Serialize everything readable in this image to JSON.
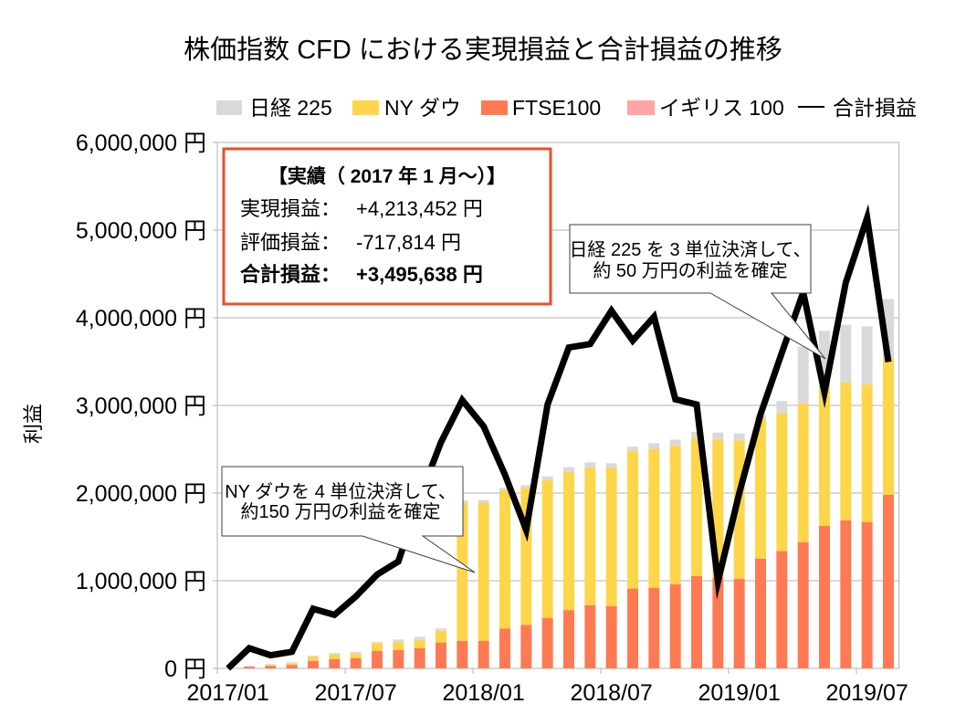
{
  "title": "株価指数 CFD における実現損益と合計損益の推移",
  "legend": [
    {
      "label": "日経 225",
      "color": "#D9D9D9"
    },
    {
      "label": "NY ダウ",
      "color": "#FFD54A"
    },
    {
      "label": "FTSE100",
      "color": "#FF7A52"
    },
    {
      "label": "イギリス 100",
      "color": "#FFA5A5"
    },
    {
      "label": "合計損益",
      "color": "#000000"
    }
  ],
  "summary_box": {
    "heading": "【実績（ 2017 年 1 月～）】",
    "rows": [
      {
        "label": "実現損益：",
        "value": "+4,213,452 円"
      },
      {
        "label": "評価損益：",
        "value": "-717,814 円"
      },
      {
        "label": "合計損益：",
        "value": "+3,495,638 円"
      }
    ],
    "accent_color": "#E8502A"
  },
  "annotations": [
    {
      "lines": [
        "NY ダウを 4 単位決済して、",
        "約150 万円の利益を確定"
      ]
    },
    {
      "lines": [
        "日経 225 を 3 単位決済して、",
        "約 50 万円の利益を確定"
      ]
    }
  ],
  "chart_data": {
    "type": "bar",
    "stacked": true,
    "title": "株価指数 CFD における実現損益と合計損益の推移",
    "xlabel": "",
    "ylabel": "利益",
    "ylim": [
      0,
      6000000
    ],
    "yticks": [
      0,
      1000000,
      2000000,
      3000000,
      4000000,
      5000000,
      6000000
    ],
    "ytick_labels": [
      "0 円",
      "1,000,000 円",
      "2,000,000 円",
      "3,000,000 円",
      "4,000,000 円",
      "5,000,000 円",
      "6,000,000 円"
    ],
    "xtick_labels": [
      "2017/01",
      "2017/07",
      "2018/01",
      "2018/07",
      "2019/01",
      "2019/07"
    ],
    "grid": true,
    "legend_position": "top",
    "categories": [
      "2017/01",
      "2017/02",
      "2017/03",
      "2017/04",
      "2017/05",
      "2017/06",
      "2017/07",
      "2017/08",
      "2017/09",
      "2017/10",
      "2017/11",
      "2017/12",
      "2018/01",
      "2018/02",
      "2018/03",
      "2018/04",
      "2018/05",
      "2018/06",
      "2018/07",
      "2018/08",
      "2018/09",
      "2018/10",
      "2018/11",
      "2018/12",
      "2019/01",
      "2019/02",
      "2019/03",
      "2019/04",
      "2019/05",
      "2019/06",
      "2019/07",
      "2019/08"
    ],
    "series": [
      {
        "name": "FTSE100",
        "type": "bar",
        "color": "#FF7A52",
        "values": [
          0,
          20000,
          30000,
          40000,
          85000,
          105000,
          115000,
          200000,
          210000,
          230000,
          295000,
          315000,
          315000,
          455000,
          497000,
          576000,
          665000,
          720000,
          710000,
          910000,
          920000,
          960000,
          1055000,
          1035000,
          1020000,
          1250000,
          1340000,
          1440000,
          1625000,
          1690000,
          1670000,
          1980000
        ]
      },
      {
        "name": "NY ダウ",
        "type": "bar",
        "color": "#FFD54A",
        "values": [
          0,
          2000,
          10000,
          20000,
          45000,
          55000,
          55000,
          90000,
          90000,
          95000,
          135000,
          1575000,
          1575000,
          1575000,
          1563000,
          1570000,
          1575000,
          1570000,
          1580000,
          1570000,
          1580000,
          1580000,
          1575000,
          1575000,
          1580000,
          1590000,
          1570000,
          1580000,
          1575000,
          1570000,
          1570000,
          1565000
        ]
      },
      {
        "name": "日経 225",
        "type": "bar",
        "color": "#D9D9D9",
        "values": [
          0,
          3000,
          10000,
          10000,
          15000,
          15000,
          20000,
          10000,
          30000,
          35000,
          25000,
          30000,
          30000,
          30000,
          30000,
          44000,
          55000,
          60000,
          50000,
          50000,
          70000,
          70000,
          70000,
          80000,
          80000,
          50000,
          140000,
          650000,
          650000,
          660000,
          660000,
          668452
        ]
      },
      {
        "name": "イギリス 100",
        "type": "bar",
        "color": "#FFA5A5",
        "values": [
          0,
          0,
          0,
          0,
          0,
          0,
          0,
          0,
          0,
          0,
          0,
          0,
          0,
          0,
          0,
          0,
          0,
          0,
          0,
          0,
          0,
          0,
          0,
          0,
          0,
          0,
          0,
          0,
          0,
          0,
          0,
          0
        ]
      },
      {
        "name": "合計損益",
        "type": "line",
        "color": "#000000",
        "values": [
          0,
          230000,
          150000,
          190000,
          680000,
          610000,
          820000,
          1070000,
          1220000,
          1950000,
          2580000,
          3060000,
          2760000,
          2210000,
          1580000,
          3010000,
          3660000,
          3700000,
          4080000,
          3740000,
          4010000,
          3070000,
          3010000,
          990000,
          2000000,
          2900000,
          3600000,
          4290000,
          3150000,
          4400000,
          5140000,
          3495638
        ]
      }
    ]
  }
}
